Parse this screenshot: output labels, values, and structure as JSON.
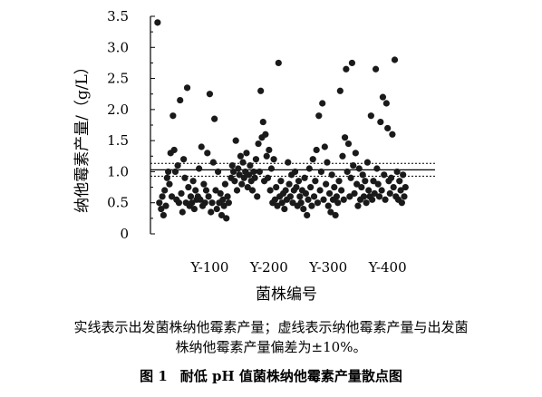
{
  "chart_data": {
    "type": "scatter",
    "title": "",
    "xlabel": "菌株编号",
    "ylabel": "纳他霉素产量/（g/L）",
    "ylim": [
      0,
      3.5
    ],
    "yticks": [
      0,
      0.5,
      1.0,
      1.5,
      2.0,
      2.5,
      3.0,
      3.5
    ],
    "ytick_labels": [
      "0",
      "0.5",
      "1.0",
      "1.5",
      "2.0",
      "2.5",
      "3.0",
      "3.5"
    ],
    "xlim": [
      0,
      480
    ],
    "xticks": [
      100,
      200,
      300,
      400
    ],
    "xtick_labels": [
      "Y-100",
      "Y-200",
      "Y-300",
      "Y-400"
    ],
    "reference_lines": [
      {
        "kind": "solid",
        "y": 1.03,
        "meaning": "parent strain"
      },
      {
        "kind": "dashed",
        "y": 1.133,
        "meaning": "+10%"
      },
      {
        "kind": "dashed",
        "y": 0.927,
        "meaning": "-10%"
      }
    ],
    "points": [
      [
        12,
        3.4
      ],
      [
        15,
        0.5
      ],
      [
        18,
        0.4
      ],
      [
        20,
        0.6
      ],
      [
        22,
        0.3
      ],
      [
        24,
        0.7
      ],
      [
        26,
        0.45
      ],
      [
        28,
        0.9
      ],
      [
        30,
        1.0
      ],
      [
        32,
        0.8
      ],
      [
        34,
        1.3
      ],
      [
        36,
        0.6
      ],
      [
        38,
        1.9
      ],
      [
        40,
        1.35
      ],
      [
        42,
        1.0
      ],
      [
        44,
        0.55
      ],
      [
        46,
        1.1
      ],
      [
        48,
        0.5
      ],
      [
        50,
        2.15
      ],
      [
        52,
        0.65
      ],
      [
        54,
        0.35
      ],
      [
        56,
        1.2
      ],
      [
        58,
        0.9
      ],
      [
        60,
        0.5
      ],
      [
        62,
        2.35
      ],
      [
        64,
        0.75
      ],
      [
        66,
        0.45
      ],
      [
        68,
        0.6
      ],
      [
        70,
        0.5
      ],
      [
        72,
        0.85
      ],
      [
        74,
        0.4
      ],
      [
        76,
        0.7
      ],
      [
        78,
        0.55
      ],
      [
        80,
        0.6
      ],
      [
        82,
        1.05
      ],
      [
        84,
        0.55
      ],
      [
        86,
        1.4
      ],
      [
        88,
        0.45
      ],
      [
        90,
        0.8
      ],
      [
        92,
        0.5
      ],
      [
        94,
        0.7
      ],
      [
        96,
        1.3
      ],
      [
        98,
        0.6
      ],
      [
        100,
        2.25
      ],
      [
        102,
        0.35
      ],
      [
        104,
        0.5
      ],
      [
        106,
        1.15
      ],
      [
        108,
        1.85
      ],
      [
        110,
        0.7
      ],
      [
        112,
        0.4
      ],
      [
        114,
        1.0
      ],
      [
        116,
        0.5
      ],
      [
        118,
        0.65
      ],
      [
        120,
        0.3
      ],
      [
        122,
        0.55
      ],
      [
        124,
        0.45
      ],
      [
        126,
        0.8
      ],
      [
        128,
        0.25
      ],
      [
        130,
        0.6
      ],
      [
        132,
        0.5
      ],
      [
        136,
        0.9
      ],
      [
        138,
        1.1
      ],
      [
        140,
        1.0
      ],
      [
        142,
        0.85
      ],
      [
        144,
        1.5
      ],
      [
        146,
        0.7
      ],
      [
        148,
        1.05
      ],
      [
        150,
        0.95
      ],
      [
        152,
        1.25
      ],
      [
        154,
        0.8
      ],
      [
        156,
        1.15
      ],
      [
        158,
        0.9
      ],
      [
        160,
        1.0
      ],
      [
        162,
        1.3
      ],
      [
        164,
        0.75
      ],
      [
        166,
        0.95
      ],
      [
        168,
        1.1
      ],
      [
        170,
        0.85
      ],
      [
        172,
        0.7
      ],
      [
        174,
        1.0
      ],
      [
        176,
        0.9
      ],
      [
        178,
        1.2
      ],
      [
        180,
        0.6
      ],
      [
        182,
        1.45
      ],
      [
        184,
        1.0
      ],
      [
        186,
        2.3
      ],
      [
        188,
        1.55
      ],
      [
        190,
        1.8
      ],
      [
        192,
        0.85
      ],
      [
        194,
        1.6
      ],
      [
        196,
        1.25
      ],
      [
        198,
        0.9
      ],
      [
        200,
        1.35
      ],
      [
        202,
        0.7
      ],
      [
        204,
        1.05
      ],
      [
        206,
        0.5
      ],
      [
        208,
        1.2
      ],
      [
        210,
        0.55
      ],
      [
        212,
        0.75
      ],
      [
        214,
        0.45
      ],
      [
        216,
        2.75
      ],
      [
        218,
        0.6
      ],
      [
        220,
        0.85
      ],
      [
        222,
        0.5
      ],
      [
        224,
        0.65
      ],
      [
        226,
        0.4
      ],
      [
        228,
        0.7
      ],
      [
        230,
        0.55
      ],
      [
        232,
        1.15
      ],
      [
        234,
        0.8
      ],
      [
        236,
        0.6
      ],
      [
        238,
        0.95
      ],
      [
        240,
        0.5
      ],
      [
        242,
        0.7
      ],
      [
        244,
        1.0
      ],
      [
        246,
        0.75
      ],
      [
        248,
        0.45
      ],
      [
        250,
        0.85
      ],
      [
        252,
        0.6
      ],
      [
        254,
        0.5
      ],
      [
        256,
        0.7
      ],
      [
        258,
        0.4
      ],
      [
        260,
        0.9
      ],
      [
        262,
        0.65
      ],
      [
        264,
        0.3
      ],
      [
        266,
        0.55
      ],
      [
        268,
        1.05
      ],
      [
        270,
        0.75
      ],
      [
        272,
        0.45
      ],
      [
        274,
        1.2
      ],
      [
        276,
        0.6
      ],
      [
        278,
        0.85
      ],
      [
        280,
        1.35
      ],
      [
        282,
        0.5
      ],
      [
        284,
        1.9
      ],
      [
        286,
        0.7
      ],
      [
        288,
        1.0
      ],
      [
        290,
        2.1
      ],
      [
        292,
        0.55
      ],
      [
        294,
        1.4
      ],
      [
        296,
        0.8
      ],
      [
        298,
        1.15
      ],
      [
        300,
        0.45
      ],
      [
        302,
        0.65
      ],
      [
        304,
        0.35
      ],
      [
        306,
        0.95
      ],
      [
        308,
        0.55
      ],
      [
        310,
        0.75
      ],
      [
        312,
        0.3
      ],
      [
        314,
        0.6
      ],
      [
        316,
        0.5
      ],
      [
        318,
        0.85
      ],
      [
        320,
        2.3
      ],
      [
        322,
        0.7
      ],
      [
        324,
        1.25
      ],
      [
        326,
        0.55
      ],
      [
        328,
        1.55
      ],
      [
        330,
        2.65
      ],
      [
        332,
        1.0
      ],
      [
        334,
        1.45
      ],
      [
        336,
        0.6
      ],
      [
        338,
        0.9
      ],
      [
        340,
        2.75
      ],
      [
        342,
        1.1
      ],
      [
        344,
        0.65
      ],
      [
        346,
        1.3
      ],
      [
        348,
        0.8
      ],
      [
        350,
        0.45
      ],
      [
        352,
        1.05
      ],
      [
        354,
        0.55
      ],
      [
        356,
        0.75
      ],
      [
        358,
        0.95
      ],
      [
        360,
        0.6
      ],
      [
        362,
        0.85
      ],
      [
        364,
        0.5
      ],
      [
        366,
        1.15
      ],
      [
        368,
        0.7
      ],
      [
        370,
        0.6
      ],
      [
        372,
        1.9
      ],
      [
        374,
        0.55
      ],
      [
        376,
        0.85
      ],
      [
        378,
        0.65
      ],
      [
        380,
        2.65
      ],
      [
        382,
        1.05
      ],
      [
        384,
        0.8
      ],
      [
        386,
        0.6
      ],
      [
        388,
        1.8
      ],
      [
        390,
        0.7
      ],
      [
        392,
        2.2
      ],
      [
        394,
        0.95
      ],
      [
        396,
        0.55
      ],
      [
        398,
        2.1
      ],
      [
        400,
        1.7
      ],
      [
        402,
        0.85
      ],
      [
        404,
        0.65
      ],
      [
        406,
        0.9
      ],
      [
        408,
        1.6
      ],
      [
        410,
        0.75
      ],
      [
        412,
        2.8
      ],
      [
        414,
        0.6
      ],
      [
        416,
        1.0
      ],
      [
        418,
        0.55
      ],
      [
        420,
        0.85
      ],
      [
        422,
        0.7
      ],
      [
        424,
        0.5
      ],
      [
        426,
        0.95
      ],
      [
        428,
        0.6
      ],
      [
        430,
        0.75
      ]
    ]
  },
  "caption": {
    "line1": "实线表示出发菌株纳他霉素产量；虚线表示纳他霉素产量与出发菌",
    "line2": "株纳他霉素产量偏差为±10%。",
    "figure_number": "图 1",
    "figure_title": "耐低 pH 值菌株纳他霉素产量散点图"
  }
}
